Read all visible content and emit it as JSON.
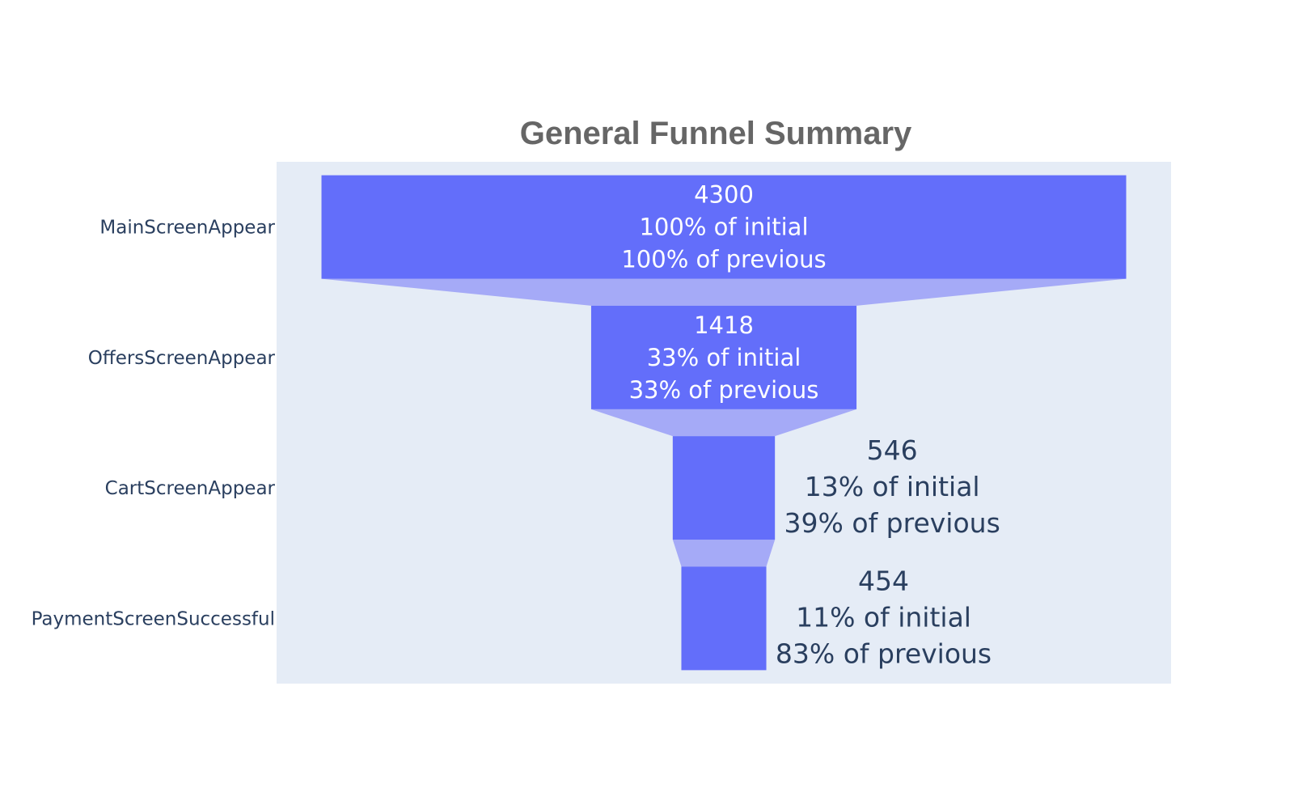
{
  "chart_data": {
    "type": "funnel",
    "title": "General Funnel Summary",
    "stages": [
      "MainScreenAppear",
      "OffersScreenAppear",
      "CartScreenAppear",
      "PaymentScreenSuccessful"
    ],
    "values": [
      4300,
      1418,
      546,
      454
    ],
    "percent_initial": [
      "100% of initial",
      "33% of initial",
      "13% of initial",
      "11% of initial"
    ],
    "percent_previous": [
      "100% of previous",
      "33% of previous",
      "39% of previous",
      "83% of previous"
    ],
    "value_labels": [
      "4300",
      "1418",
      "546",
      "454"
    ],
    "text_position": [
      "inside",
      "inside",
      "outside",
      "outside"
    ],
    "colors": {
      "bar": "#636efa",
      "connector": "#a5aaf7",
      "plot_background": "#e5ecf6",
      "title": "#666666",
      "axis_text": "#2a3f5f"
    }
  }
}
